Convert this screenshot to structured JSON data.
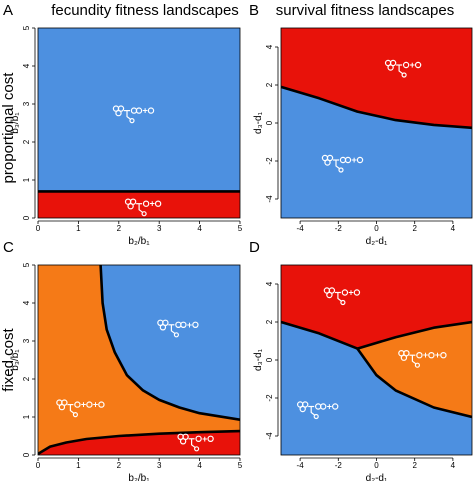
{
  "column_titles": [
    "fecundity fitness landscapes",
    "survival fitness landscapes"
  ],
  "row_labels": [
    "proportional cost",
    "fixed cost"
  ],
  "colors": {
    "blue": "#4d90e0",
    "red": "#e8120a",
    "orange": "#f57a17",
    "white": "#ffffff",
    "black": "#000000"
  },
  "chart_data": [
    {
      "panel": "A",
      "type": "heatmap",
      "xlabel": "b₂/b₁",
      "ylabel": "b₃/b₁",
      "xlim": [
        0,
        5
      ],
      "ylim": [
        0,
        5
      ],
      "xticks": [
        "0",
        "1",
        "2",
        "3",
        "4",
        "5"
      ],
      "yticks": [
        "0",
        "1",
        "2",
        "3",
        "4",
        "5"
      ],
      "regions": [
        {
          "color": "blue",
          "label": "○○○—○○+○",
          "icon": "cluster-of-three-icon",
          "at": [
            2.4,
            2.8
          ]
        },
        {
          "color": "red",
          "label": "○○○—○+○",
          "icon": "cluster-of-two-icon",
          "at": [
            2.7,
            0.35
          ]
        }
      ],
      "boundary": [
        [
          0,
          0.7
        ],
        [
          5,
          0.7
        ]
      ]
    },
    {
      "panel": "B",
      "type": "heatmap",
      "xlabel": "d₂-d₁",
      "ylabel": "d₃-d₁",
      "xlim": [
        -5,
        5
      ],
      "ylim": [
        -5,
        5
      ],
      "xticks": [
        "-4",
        "-2",
        "0",
        "2",
        "4"
      ],
      "yticks": [
        "-4",
        "-2",
        "0",
        "2",
        "4"
      ],
      "regions": [
        {
          "color": "red",
          "label": "○○○—○+○",
          "icon": "cluster-of-two-icon",
          "at": [
            1.6,
            3.0
          ]
        },
        {
          "color": "blue",
          "label": "○○○—○○+○",
          "icon": "cluster-of-three-icon",
          "at": [
            -1.7,
            -2.0
          ]
        }
      ],
      "boundary": [
        [
          -5,
          1.9
        ],
        [
          -3,
          1.3
        ],
        [
          -1,
          0.6
        ],
        [
          1,
          0.15
        ],
        [
          3,
          -0.1
        ],
        [
          5,
          -0.25
        ]
      ]
    },
    {
      "panel": "C",
      "type": "heatmap",
      "xlabel": "b₂/b₁",
      "ylabel": "b₃/b₁",
      "xlim": [
        0,
        5
      ],
      "ylim": [
        0,
        5
      ],
      "xticks": [
        "0",
        "1",
        "2",
        "3",
        "4",
        "5"
      ],
      "yticks": [
        "0",
        "1",
        "2",
        "3",
        "4",
        "5"
      ],
      "regions": [
        {
          "color": "blue",
          "label": "○○○—○○+○",
          "icon": "cluster-of-three-icon",
          "at": [
            3.5,
            3.4
          ]
        },
        {
          "color": "orange",
          "label": "○○○—○+○+○",
          "icon": "single-cells-icon",
          "at": [
            1.0,
            1.3
          ]
        },
        {
          "color": "red",
          "label": "○○○—○+○",
          "icon": "cluster-of-two-icon",
          "at": [
            4.0,
            0.4
          ]
        }
      ],
      "boundary_upper": [
        [
          1.55,
          5
        ],
        [
          1.6,
          4
        ],
        [
          1.7,
          3.3
        ],
        [
          1.9,
          2.7
        ],
        [
          2.2,
          2.1
        ],
        [
          2.6,
          1.7
        ],
        [
          3.0,
          1.45
        ],
        [
          3.5,
          1.25
        ],
        [
          4.0,
          1.1
        ],
        [
          5,
          0.93
        ]
      ],
      "boundary_lower": [
        [
          0,
          0.03
        ],
        [
          0.3,
          0.22
        ],
        [
          0.7,
          0.33
        ],
        [
          1.2,
          0.42
        ],
        [
          2,
          0.5
        ],
        [
          3,
          0.56
        ],
        [
          4,
          0.6
        ],
        [
          5,
          0.63
        ]
      ]
    },
    {
      "panel": "D",
      "type": "heatmap",
      "xlabel": "d₂-d₁",
      "ylabel": "d₃-d₁",
      "xlim": [
        -5,
        5
      ],
      "ylim": [
        -5,
        5
      ],
      "xticks": [
        "-4",
        "-2",
        "0",
        "2",
        "4"
      ],
      "yticks": [
        "-4",
        "-2",
        "0",
        "2",
        "4"
      ],
      "regions": [
        {
          "color": "red",
          "label": "○○○—○+○",
          "icon": "cluster-of-two-icon",
          "at": [
            -1.6,
            3.5
          ]
        },
        {
          "color": "orange",
          "label": "○○○—○+○+○",
          "icon": "single-cells-icon",
          "at": [
            2.3,
            0.2
          ]
        },
        {
          "color": "blue",
          "label": "○○○—○○+○",
          "icon": "cluster-of-three-icon",
          "at": [
            -3.0,
            -2.5
          ]
        }
      ],
      "boundary_red_blue": [
        [
          -5,
          2.0
        ],
        [
          -3,
          1.4
        ],
        [
          -1,
          0.6
        ]
      ],
      "boundary_red_orange": [
        [
          -1,
          0.6
        ],
        [
          1,
          1.2
        ],
        [
          3,
          1.7
        ],
        [
          5,
          2.0
        ]
      ],
      "boundary_blue_orange": [
        [
          -1,
          0.6
        ],
        [
          0,
          -0.8
        ],
        [
          1,
          -1.6
        ],
        [
          3,
          -2.5
        ],
        [
          5,
          -3.0
        ]
      ]
    }
  ]
}
